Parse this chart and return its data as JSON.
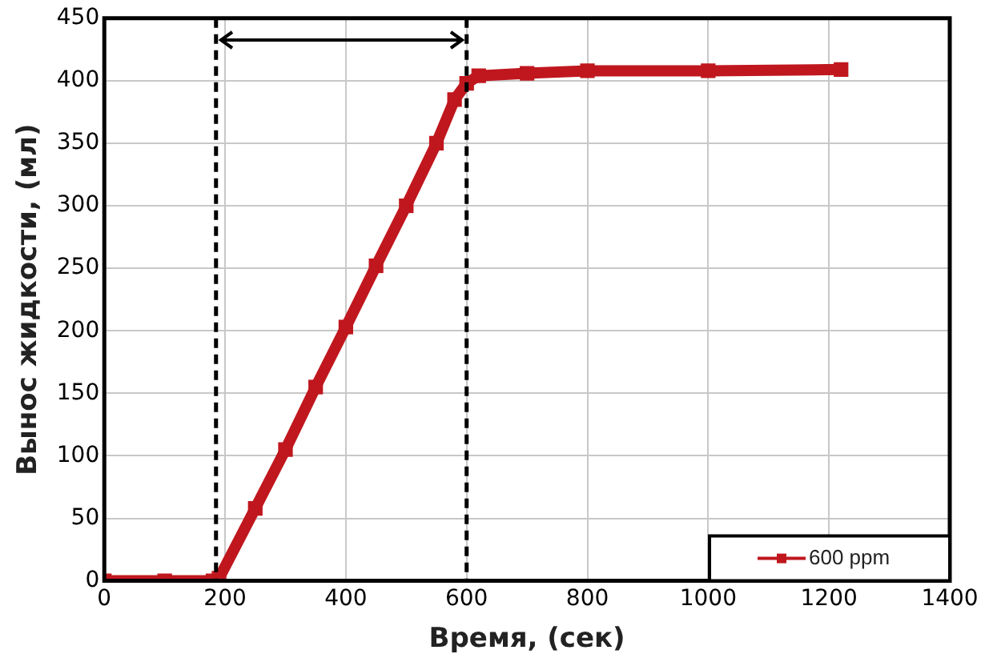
{
  "chart_data": {
    "type": "line",
    "xlabel": "Время, (сек)",
    "ylabel": "Вынос жидкости, (мл)",
    "xlim": [
      0,
      1400
    ],
    "xticks": [
      0,
      200,
      400,
      600,
      800,
      1000,
      1200,
      1400
    ],
    "ylim": [
      0,
      450
    ],
    "yticks": [
      0,
      50,
      100,
      150,
      200,
      250,
      300,
      350,
      400,
      450
    ],
    "grid": true,
    "legend": "bottom right",
    "marker": "square",
    "line_style": "solid",
    "series": [
      {
        "name": "600 ppm",
        "color": "#c0171e",
        "x": [
          0,
          100,
          180,
          190,
          250,
          300,
          350,
          400,
          450,
          500,
          550,
          580,
          600,
          620,
          700,
          800,
          1000,
          1220
        ],
        "values": [
          0,
          0,
          0,
          2,
          58,
          105,
          155,
          203,
          252,
          300,
          350,
          385,
          398,
          404,
          406,
          408,
          408,
          409
        ]
      }
    ],
    "ref_lines": [
      {
        "axis": "x",
        "value": 185,
        "line_style": "dashed",
        "color": "#000000"
      },
      {
        "axis": "x",
        "value": 600,
        "line_style": "dashed",
        "color": "#000000"
      }
    ]
  }
}
